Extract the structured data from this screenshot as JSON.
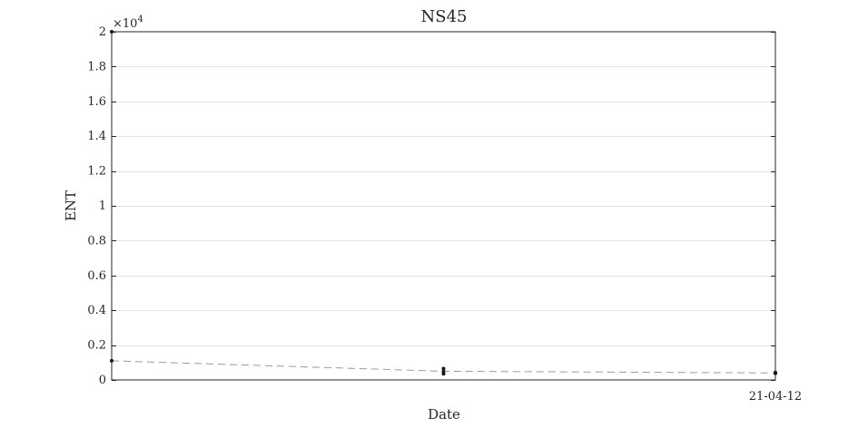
{
  "chart_data": {
    "type": "line",
    "title": "NS45",
    "xlabel": "Date",
    "ylabel": "ENT",
    "y_exponent_label": "×10",
    "y_exponent_power": "4",
    "y_multiplier": 10000,
    "ylim": [
      0,
      20000
    ],
    "y_ticks": [
      0,
      2000,
      4000,
      6000,
      8000,
      10000,
      12000,
      14000,
      16000,
      18000,
      20000
    ],
    "y_tick_labels": [
      "0",
      "0.2",
      "0.4",
      "0.6",
      "0.8",
      "1",
      "1.2",
      "1.4",
      "1.6",
      "1.8",
      "2"
    ],
    "xlim": [
      "2021-03-25",
      "2021-04-12"
    ],
    "x_ticks": [
      {
        "x": "2021-04-12",
        "label": "21-04-12"
      }
    ],
    "grid": "horizontal",
    "legend": "none",
    "series": [
      {
        "line_style": "dashed",
        "color": "#9a9a9a",
        "points": [
          {
            "x": "2021-03-25",
            "y": 1100
          },
          {
            "x": "2021-04-03",
            "y": 500
          },
          {
            "x": "2021-04-12",
            "y": 400
          }
        ]
      }
    ],
    "markers": [
      {
        "x": "2021-03-25",
        "y": 1100
      },
      {
        "x": "2021-03-25",
        "y": 20000
      },
      {
        "x": "2021-04-03",
        "y": 350
      },
      {
        "x": "2021-04-03",
        "y": 480
      },
      {
        "x": "2021-04-03",
        "y": 650
      },
      {
        "x": "2021-04-12",
        "y": 380
      },
      {
        "x": "2021-04-12",
        "y": 430
      }
    ]
  }
}
